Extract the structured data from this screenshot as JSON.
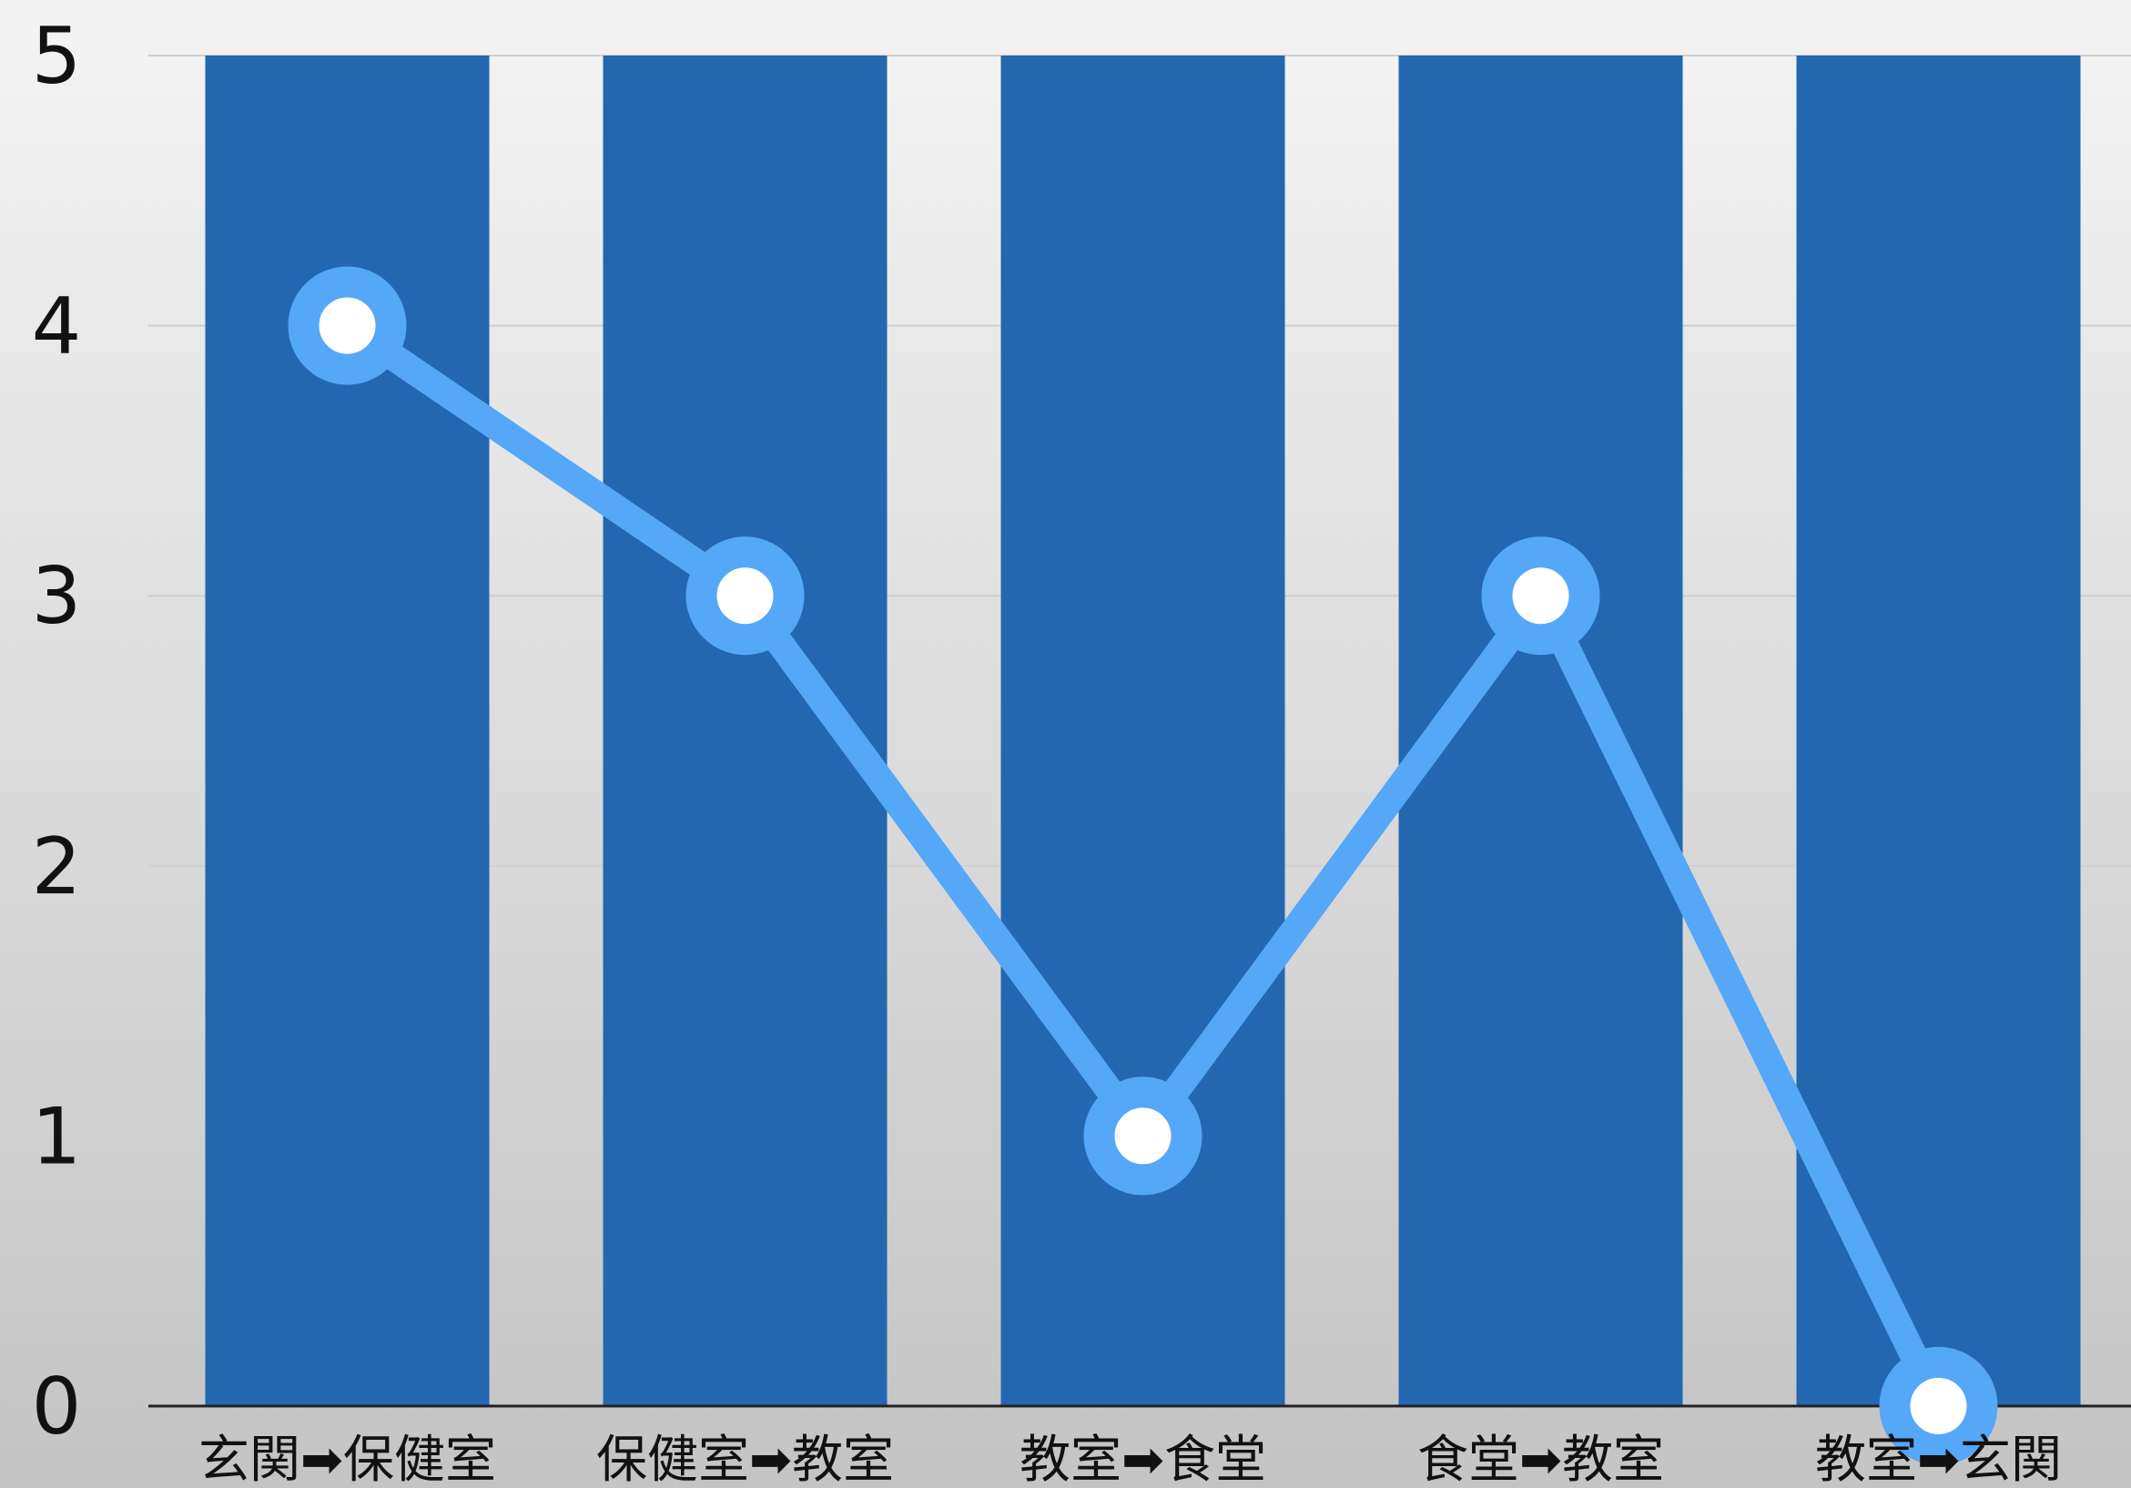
{
  "chart_data": {
    "type": "bar",
    "categories": [
      "玄関➡保健室",
      "保健室➡教室",
      "教室➡食堂",
      "食堂➡教室",
      "教室➡玄関"
    ],
    "series": [
      {
        "type": "bar",
        "values": [
          5,
          5,
          5,
          5,
          5
        ]
      },
      {
        "type": "line",
        "values": [
          4,
          3,
          1,
          3,
          0
        ]
      }
    ],
    "ylim": [
      0,
      5
    ],
    "yticks": [
      "0",
      "1",
      "2",
      "3",
      "4",
      "5"
    ],
    "grid": true,
    "colors": {
      "bar": "#2367b0",
      "line": "#55a7f8",
      "marker_fill": "#ffffff",
      "grid": "#cfcfcf",
      "axis": "#222222",
      "text": "#111111"
    }
  }
}
